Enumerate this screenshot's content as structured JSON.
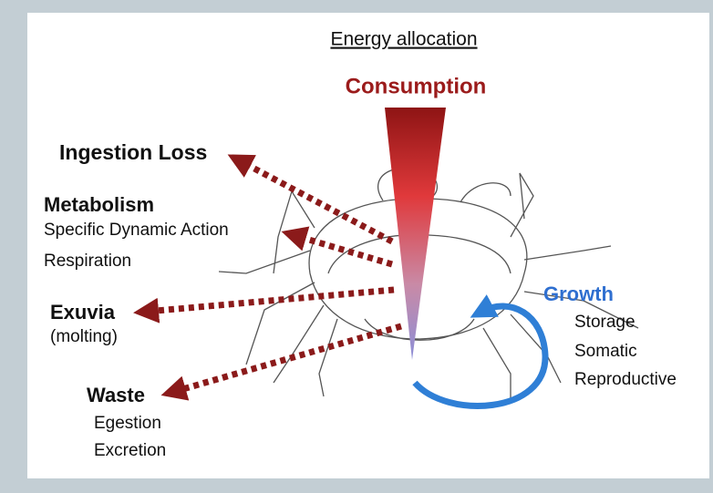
{
  "title": "Energy allocation",
  "source": "Consumption",
  "outputs": [
    {
      "label": "Ingestion Loss"
    },
    {
      "label": "Metabolism",
      "details": [
        "Specific Dynamic Action",
        "Respiration"
      ]
    },
    {
      "label": "Exuvia",
      "details": [
        "(molting)"
      ]
    },
    {
      "label": "Waste",
      "details": [
        "Egestion",
        "Excretion"
      ]
    }
  ],
  "growth": {
    "label": "Growth",
    "details": [
      "Storage",
      "Somatic",
      "Reproductive"
    ]
  }
}
